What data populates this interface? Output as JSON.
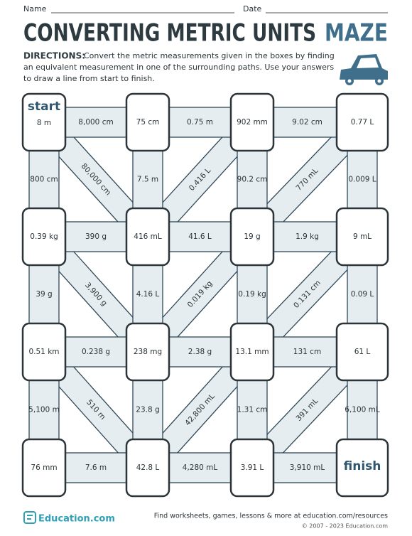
{
  "header": {
    "name_label": "Name",
    "date_label": "Date",
    "title": "CONVERTING METRIC UNITS",
    "title_accent": "MAZE"
  },
  "directions": {
    "label": "DIRECTIONS:",
    "lines": [
      "Convert the metric measurements given in the boxes by finding",
      "an equivalent measurement in one of the surrounding paths. Use your answers",
      "to draw a line from start to finish."
    ]
  },
  "maze": {
    "start": "start",
    "finish": "finish",
    "boxes": [
      [
        "8 m",
        "75 cm",
        "902 mm",
        "0.77 L"
      ],
      [
        "0.39 kg",
        "416 mL",
        "19 g",
        "9 mL"
      ],
      [
        "0.51 km",
        "238 mg",
        "13.1 mm",
        "61 L"
      ],
      [
        "76 mm",
        "42.8 L",
        "3.91 L"
      ]
    ],
    "horizontal": [
      [
        "8,000 cm",
        "0.75 m",
        "9.02 cm"
      ],
      [
        "390 g",
        "41.6 L",
        "1.9 kg"
      ],
      [
        "0.238 g",
        "2.38 g",
        "131 cm"
      ],
      [
        "7.6 m",
        "4,280 mL",
        "3,910 mL"
      ]
    ],
    "vertical": [
      [
        "800 cm",
        "7.5 m",
        "90.2 cm",
        "0.009 L"
      ],
      [
        "39 g",
        "4.16 L",
        "0.19 kg",
        "0.09 L"
      ],
      [
        "5,100 m",
        "23.8 g",
        "1.31 cm",
        "6,100 mL"
      ]
    ],
    "diagonal": [
      [
        "80,000 cm",
        "0.416 L",
        "770 mL"
      ],
      [
        "3,900 g",
        "0.019 kg",
        "0.131 cm"
      ],
      [
        "510 m",
        "42,800 mL",
        "391 mL"
      ]
    ]
  },
  "footer": {
    "logo": "Education.com",
    "tagline": "Find worksheets, games, lessons & more at education.com/resources",
    "copyright": "© 2007 - 2023 Education.com"
  }
}
